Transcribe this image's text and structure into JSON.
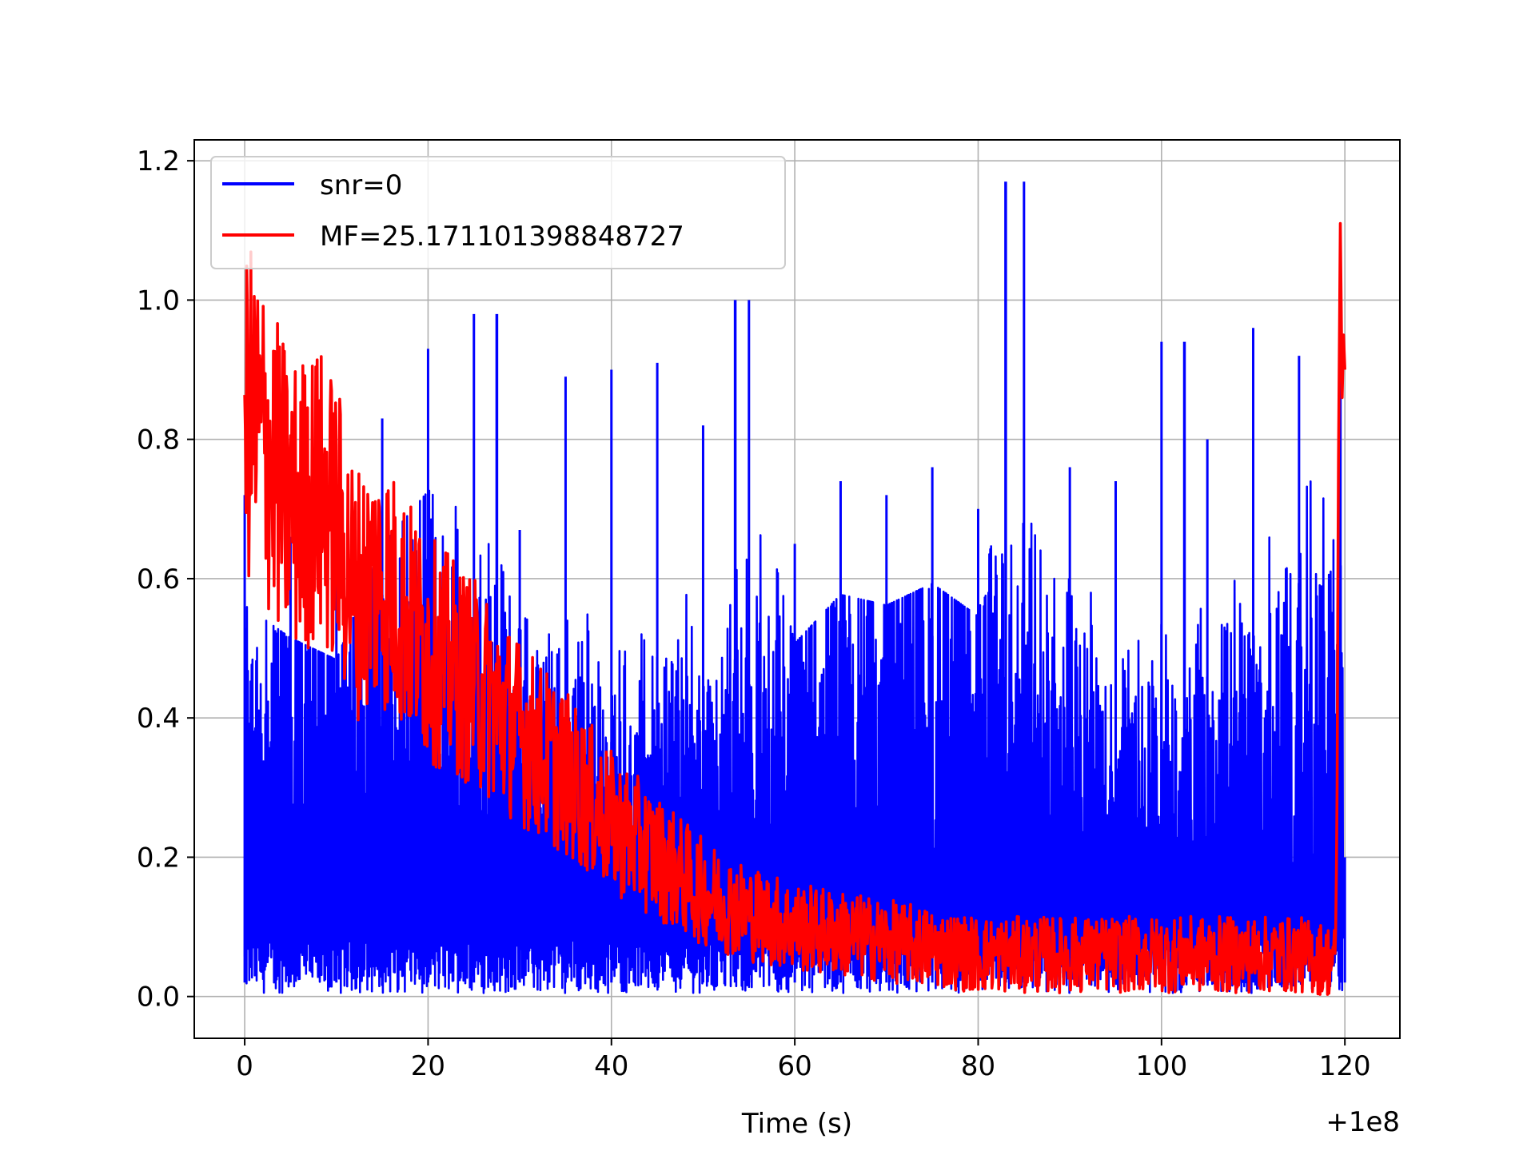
{
  "chart_data": {
    "type": "line",
    "title": "",
    "xlabel": "Time (s)",
    "ylabel": "",
    "x_offset_label": "+1e8",
    "xlim": [
      -5.5,
      126
    ],
    "ylim": [
      -0.06,
      1.23
    ],
    "x_ticks": [
      0,
      20,
      40,
      60,
      80,
      100,
      120
    ],
    "x_tick_labels": [
      "0",
      "20",
      "40",
      "60",
      "80",
      "100",
      "120"
    ],
    "y_ticks": [
      0.0,
      0.2,
      0.4,
      0.6,
      0.8,
      1.0,
      1.2
    ],
    "y_tick_labels": [
      "0.0",
      "0.2",
      "0.4",
      "0.6",
      "0.8",
      "1.0",
      "1.2"
    ],
    "grid": true,
    "legend_position": "upper-left",
    "series": [
      {
        "name": "snr=0",
        "color": "#0000ff",
        "description_points": "dense noise; upper envelope (x, y)",
        "envelope_x": [
          0,
          5,
          10,
          15,
          20,
          25,
          30,
          35,
          40,
          45,
          50,
          55,
          60,
          65,
          70,
          75,
          80,
          85,
          90,
          95,
          100,
          105,
          110,
          115,
          119.5,
          120
        ],
        "envelope_y": [
          0.72,
          0.66,
          0.62,
          0.83,
          0.93,
          0.98,
          0.67,
          0.89,
          0.9,
          0.91,
          0.82,
          1.0,
          0.65,
          0.74,
          0.72,
          0.76,
          0.7,
          1.17,
          0.76,
          0.74,
          0.94,
          0.8,
          0.96,
          0.92,
          1.05,
          0.2
        ],
        "spikes": [
          {
            "x": 27.5,
            "y": 0.98
          },
          {
            "x": 53.5,
            "y": 1.0
          },
          {
            "x": 83.0,
            "y": 1.17
          },
          {
            "x": 102.5,
            "y": 0.94
          },
          {
            "x": 119.5,
            "y": 1.05
          }
        ]
      },
      {
        "name": "MF=25.171101398848727",
        "color": "#ff0000",
        "trend_x": [
          0,
          2,
          5,
          8,
          10,
          12,
          15,
          20,
          25,
          30,
          35,
          40,
          45,
          50,
          55,
          60,
          65,
          70,
          75,
          80,
          85,
          90,
          95,
          100,
          105,
          110,
          115,
          119,
          119.5,
          120
        ],
        "trend_y": [
          0.85,
          0.8,
          0.7,
          0.72,
          0.68,
          0.58,
          0.6,
          0.5,
          0.45,
          0.38,
          0.32,
          0.25,
          0.2,
          0.15,
          0.12,
          0.1,
          0.09,
          0.08,
          0.07,
          0.06,
          0.06,
          0.06,
          0.06,
          0.06,
          0.06,
          0.06,
          0.06,
          0.05,
          1.11,
          0.9
        ]
      }
    ]
  }
}
